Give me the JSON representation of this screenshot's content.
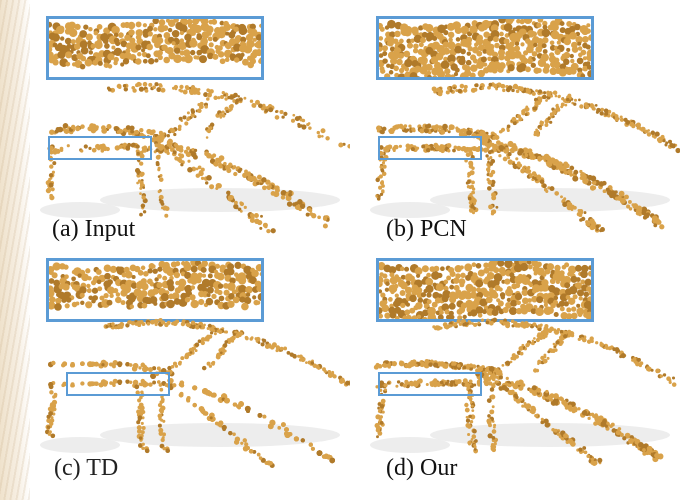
{
  "figure": {
    "panels": [
      {
        "id": "a",
        "caption": "(a) Input"
      },
      {
        "id": "b",
        "caption": "(b) PCN"
      },
      {
        "id": "c",
        "caption": "(c) TD"
      },
      {
        "id": "d",
        "caption": "(d) Our"
      }
    ]
  },
  "colors": {
    "point": "#d9a24a",
    "point_dark": "#b07a2a",
    "highlight": "#5b9bd5",
    "shadow": "#d8d8d8"
  }
}
